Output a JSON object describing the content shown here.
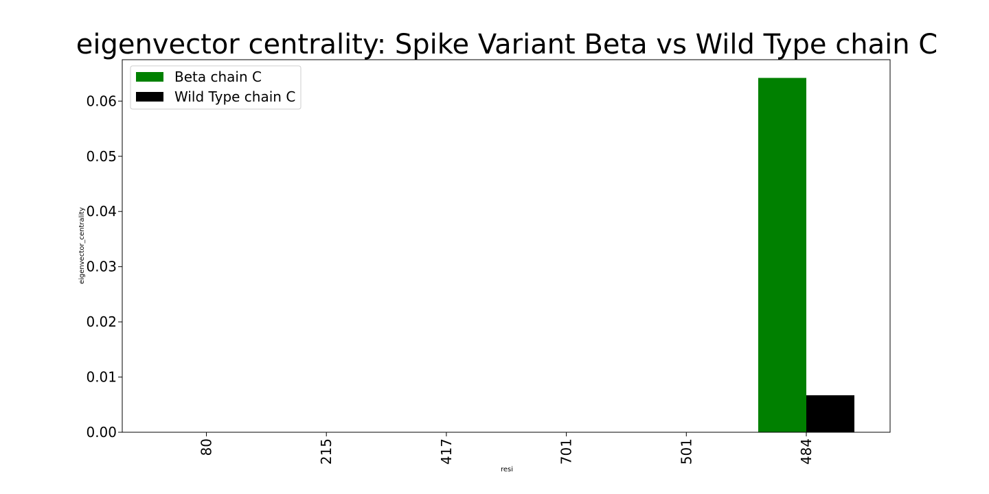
{
  "chart_data": {
    "type": "bar",
    "title": "eigenvector centrality: Spike Variant Beta vs Wild Type chain C",
    "xlabel": "resi",
    "ylabel": "eigenvector_centrality",
    "categories": [
      "80",
      "215",
      "417",
      "701",
      "501",
      "484"
    ],
    "series": [
      {
        "name": "Beta chain C",
        "color": "#008000",
        "values": [
          0,
          0,
          0,
          0,
          0,
          0.0642
        ]
      },
      {
        "name": "Wild Type chain C",
        "color": "#000000",
        "values": [
          0,
          0,
          0,
          0,
          0,
          0.0067
        ]
      }
    ],
    "ylim": [
      0,
      0.0675
    ],
    "yticks": [
      0.0,
      0.01,
      0.02,
      0.03,
      0.04,
      0.05,
      0.06
    ],
    "ytick_labels": [
      "0.00",
      "0.01",
      "0.02",
      "0.03",
      "0.04",
      "0.05",
      "0.06"
    ],
    "grid": false,
    "legend_position": "top-left",
    "xtick_rotation": "vertical"
  }
}
